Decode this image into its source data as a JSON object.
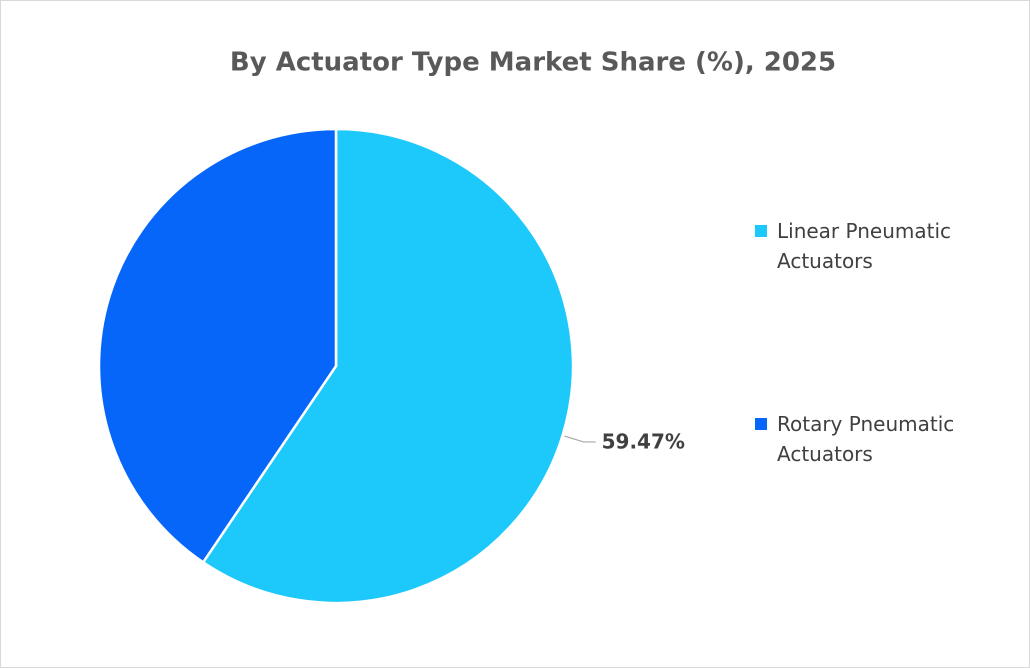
{
  "chart_data": {
    "type": "pie",
    "title": "By Actuator Type Market Share (%), 2025",
    "categories": [
      "Linear Pneumatic Actuators",
      "Rotary Pneumatic Actuators"
    ],
    "values": [
      59.47,
      40.53
    ],
    "value_labels": [
      "59.47%",
      null
    ],
    "colors": [
      "#1dc8fb",
      "#0766fa"
    ],
    "legend": "right"
  }
}
